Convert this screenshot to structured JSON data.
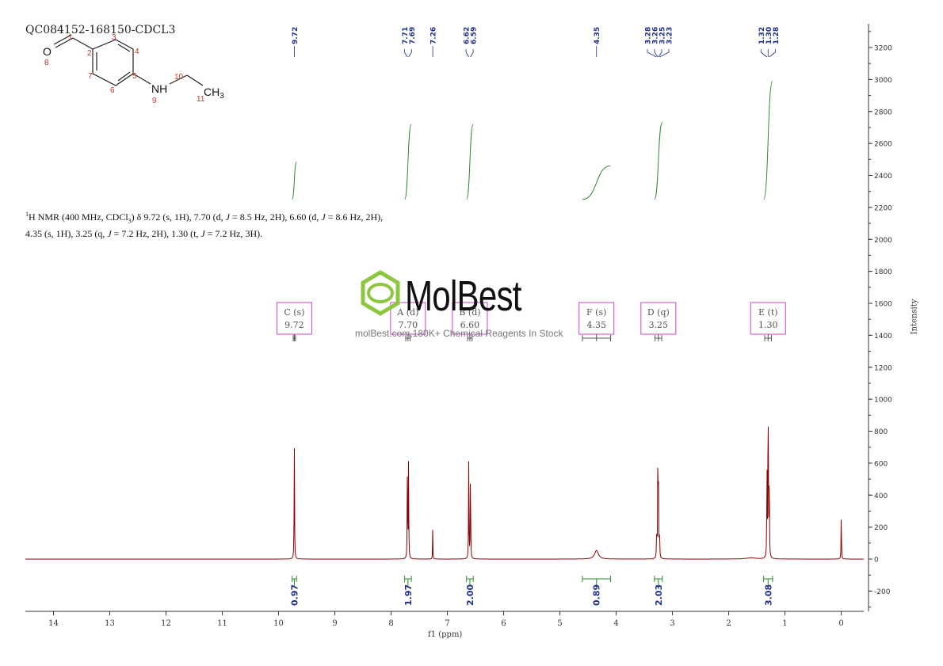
{
  "sample_title": "QC084152-168150-CDCL3",
  "nmr_description": {
    "part1": "H NMR (400 MHz, CDCl",
    "part2": ") δ 9.72 (s, 1H), 7.70 (d, ",
    "part3": " = 8.5 Hz, 2H), 6.60 (d, ",
    "part4": " = 8.6 Hz, 2H), 4.35 (s, 1H), 3.25 (q, ",
    "part5": " = 7.2 Hz, 2H), 1.30 (t, ",
    "part6": " = 7.2 Hz, 3H).",
    "sup": "1",
    "sub": "3",
    "j": "J"
  },
  "watermark": {
    "name": "MolBest",
    "tagline": "molBest.com,180K+ Chemical Reagents In Stock",
    "color": "#8dc63f"
  },
  "structure": {
    "atom_O": "O",
    "atom_NH": "NH",
    "atom_CH": "CH",
    "atom_sub3": "3",
    "numbers": [
      "1",
      "2",
      "3",
      "4",
      "5",
      "6",
      "7",
      "8",
      "9",
      "10",
      "11"
    ]
  },
  "chart_data": {
    "type": "line",
    "xlabel": "f1 (ppm)",
    "ylabel": "Intensity",
    "xlim": [
      14.5,
      -0.4
    ],
    "ylim": [
      -340,
      3340
    ],
    "x_ticks": [
      14,
      13,
      12,
      11,
      10,
      9,
      8,
      7,
      6,
      5,
      4,
      3,
      2,
      1,
      0
    ],
    "y_ticks": [
      -200,
      0,
      200,
      400,
      600,
      800,
      1000,
      1200,
      1400,
      1600,
      1800,
      2000,
      2200,
      2400,
      2600,
      2800,
      3000,
      3200
    ],
    "spectrum_color": "#8b0000",
    "peaks": [
      {
        "ppm": 9.72,
        "height": 760,
        "width": 0.004
      },
      {
        "ppm": 7.71,
        "height": 610,
        "width": 0.004
      },
      {
        "ppm": 7.69,
        "height": 610,
        "width": 0.004
      },
      {
        "ppm": 7.26,
        "height": 215,
        "width": 0.003
      },
      {
        "ppm": 6.62,
        "height": 610,
        "width": 0.004
      },
      {
        "ppm": 6.59,
        "height": 610,
        "width": 0.004
      },
      {
        "ppm": 4.35,
        "height": 55,
        "width": 0.04
      },
      {
        "ppm": 3.28,
        "height": 190,
        "width": 0.004
      },
      {
        "ppm": 3.26,
        "height": 580,
        "width": 0.004
      },
      {
        "ppm": 3.25,
        "height": 580,
        "width": 0.004
      },
      {
        "ppm": 3.23,
        "height": 190,
        "width": 0.004
      },
      {
        "ppm": 1.32,
        "height": 600,
        "width": 0.004
      },
      {
        "ppm": 1.3,
        "height": 1210,
        "width": 0.004
      },
      {
        "ppm": 1.28,
        "height": 600,
        "width": 0.004
      },
      {
        "ppm": 1.6,
        "height": 8,
        "width": 0.1
      },
      {
        "ppm": 0.0,
        "height": 275,
        "width": 0.004
      }
    ],
    "peak_labels": [
      "9.72",
      "7.71",
      "7.69",
      "7.26",
      "6.62",
      "6.59",
      "4.35",
      "3.28",
      "3.26",
      "3.25",
      "3.23",
      "1.32",
      "1.30",
      "1.28"
    ],
    "peak_label_groups": [
      {
        "labels": [
          "9.72"
        ],
        "ppm": [
          9.72
        ]
      },
      {
        "labels": [
          "7.71",
          "7.69"
        ],
        "ppm": [
          7.71,
          7.69
        ]
      },
      {
        "labels": [
          "7.26"
        ],
        "ppm": [
          7.26
        ]
      },
      {
        "labels": [
          "6.62",
          "6.59"
        ],
        "ppm": [
          6.62,
          6.59
        ]
      },
      {
        "labels": [
          "4.35"
        ],
        "ppm": [
          4.35
        ]
      },
      {
        "labels": [
          "3.28",
          "3.26",
          "3.25",
          "3.23"
        ],
        "ppm": [
          3.28,
          3.26,
          3.25,
          3.23
        ]
      },
      {
        "labels": [
          "1.32",
          "1.30",
          "1.28"
        ],
        "ppm": [
          1.32,
          1.3,
          1.28
        ]
      }
    ],
    "multiplets": [
      {
        "label": "C (s)",
        "shift": "9.72",
        "from": 9.74,
        "to": 9.7
      },
      {
        "label": "A (d)",
        "shift": "7.70",
        "from": 7.74,
        "to": 7.66
      },
      {
        "label": "B (d)",
        "shift": "6.60",
        "from": 6.64,
        "to": 6.56
      },
      {
        "label": "F (s)",
        "shift": "4.35",
        "from": 4.6,
        "to": 4.1
      },
      {
        "label": "D (q)",
        "shift": "3.25",
        "from": 3.31,
        "to": 3.19
      },
      {
        "label": "E (t)",
        "shift": "1.30",
        "from": 1.36,
        "to": 1.24
      }
    ],
    "integrals": [
      {
        "value": "0.97",
        "from": 9.76,
        "to": 9.68,
        "curve_height": 1.0
      },
      {
        "value": "1.97",
        "from": 7.76,
        "to": 7.64,
        "curve_height": 2.0
      },
      {
        "value": "2.00",
        "from": 6.66,
        "to": 6.54,
        "curve_height": 2.0
      },
      {
        "value": "0.89",
        "from": 4.6,
        "to": 4.1,
        "curve_height": 0.89
      },
      {
        "value": "2.03",
        "from": 3.32,
        "to": 3.18,
        "curve_height": 2.05
      },
      {
        "value": "3.08",
        "from": 1.38,
        "to": 1.22,
        "curve_height": 3.15
      }
    ],
    "integral_color": "#2e8b2e",
    "integral_value_color": "#1f2f8f",
    "multiplet_box_color": "#cc44cc"
  }
}
